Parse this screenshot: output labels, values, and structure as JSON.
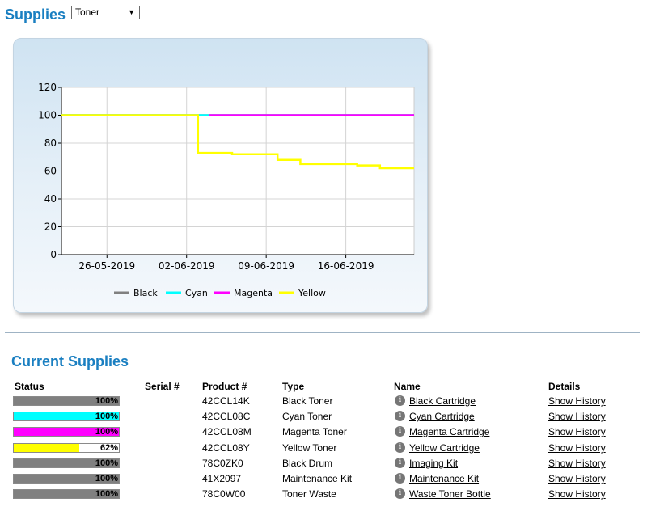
{
  "header": {
    "title": "Supplies",
    "dropdown_value": "Toner"
  },
  "chart_data": {
    "type": "line",
    "x_ticks": [
      "26-05-2019",
      "02-06-2019",
      "09-06-2019",
      "16-06-2019"
    ],
    "x_range": [
      "2019-05-22",
      "2019-06-22"
    ],
    "y_ticks": [
      0,
      20,
      40,
      60,
      80,
      100,
      120
    ],
    "ylim": [
      0,
      120
    ],
    "grid": true,
    "legend_position": "bottom",
    "series": [
      {
        "name": "Black",
        "color": "#808080",
        "points": [
          [
            "2019-05-22",
            100
          ],
          [
            "2019-06-22",
            100
          ]
        ]
      },
      {
        "name": "Cyan",
        "color": "#00ffff",
        "points": [
          [
            "2019-05-22",
            100
          ],
          [
            "2019-06-22",
            100
          ]
        ]
      },
      {
        "name": "Magenta",
        "color": "#ff00ff",
        "points": [
          [
            "2019-06-04",
            100
          ],
          [
            "2019-06-22",
            100
          ]
        ]
      },
      {
        "name": "Yellow",
        "color": "#ffff00",
        "points": [
          [
            "2019-05-22",
            100
          ],
          [
            "2019-06-03",
            100
          ],
          [
            "2019-06-03",
            73
          ],
          [
            "2019-06-06",
            73
          ],
          [
            "2019-06-06",
            72
          ],
          [
            "2019-06-10",
            72
          ],
          [
            "2019-06-10",
            68
          ],
          [
            "2019-06-12",
            68
          ],
          [
            "2019-06-12",
            65
          ],
          [
            "2019-06-17",
            65
          ],
          [
            "2019-06-17",
            64
          ],
          [
            "2019-06-19",
            64
          ],
          [
            "2019-06-19",
            62
          ],
          [
            "2019-06-22",
            62
          ]
        ]
      }
    ]
  },
  "current": {
    "title": "Current Supplies",
    "headers": {
      "status": "Status",
      "serial": "Serial #",
      "product": "Product #",
      "type": "Type",
      "name": "Name",
      "details": "Details"
    },
    "rows": [
      {
        "level": 100,
        "pct": "100%",
        "color": "#808080",
        "serial": "",
        "product": "42CCL14K",
        "type": "Black Toner",
        "name": "Black Cartridge",
        "details": "Show History"
      },
      {
        "level": 100,
        "pct": "100%",
        "color": "#00ffff",
        "serial": "",
        "product": "42CCL08C",
        "type": "Cyan Toner",
        "name": "Cyan Cartridge",
        "details": "Show History"
      },
      {
        "level": 100,
        "pct": "100%",
        "color": "#ff00ff",
        "serial": "",
        "product": "42CCL08M",
        "type": "Magenta Toner",
        "name": "Magenta Cartridge",
        "details": "Show History"
      },
      {
        "level": 62,
        "pct": "62%",
        "color": "#ffff00",
        "serial": "",
        "product": "42CCL08Y",
        "type": "Yellow Toner",
        "name": "Yellow Cartridge",
        "details": "Show History"
      },
      {
        "level": 100,
        "pct": "100%",
        "color": "#808080",
        "serial": "",
        "product": "78C0ZK0",
        "type": "Black Drum",
        "name": "Imaging Kit",
        "details": "Show History"
      },
      {
        "level": 100,
        "pct": "100%",
        "color": "#808080",
        "serial": "",
        "product": "41X2097",
        "type": "Maintenance Kit",
        "name": "Maintenance Kit",
        "details": "Show History"
      },
      {
        "level": 100,
        "pct": "100%",
        "color": "#808080",
        "serial": "",
        "product": "78C0W00",
        "type": "Toner Waste",
        "name": "Waste Toner Bottle",
        "details": "Show History"
      }
    ]
  }
}
